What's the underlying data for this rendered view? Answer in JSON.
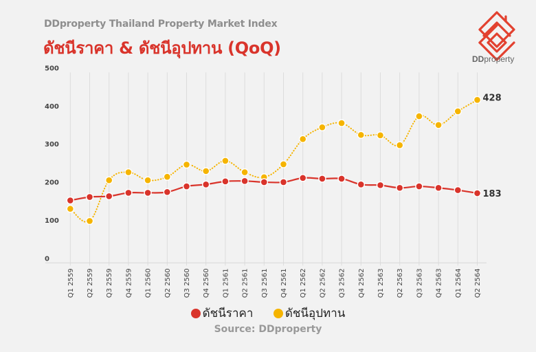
{
  "header": {
    "subtitle": "DDproperty Thailand Property Market Index",
    "title": "ดัชนีราคา & ดัชนีอุปทาน (QoQ)"
  },
  "logo": {
    "text_bold": "DD",
    "text_rest": "property"
  },
  "legend": [
    {
      "label": "ดัชนีราคา",
      "color": "#d9342b"
    },
    {
      "label": "ดัชนีอุปทาน",
      "color": "#f5b400"
    }
  ],
  "source": "Source: DDproperty",
  "end_labels": {
    "price": "183",
    "supply": "428"
  },
  "colors": {
    "price": "#d9342b",
    "supply": "#f5b400",
    "background": "#f2f2f2",
    "grid": "#dcdcdc"
  },
  "chart_data": {
    "type": "line",
    "title": "ดัชนีราคา & ดัชนีอุปทาน (QoQ)",
    "subtitle": "DDproperty Thailand Property Market Index",
    "xlabel": "",
    "ylabel": "",
    "ylim": [
      0,
      500
    ],
    "yticks": [
      0,
      100,
      200,
      300,
      400,
      500
    ],
    "grid": {
      "vertical": true,
      "horizontal": false
    },
    "legend_position": "bottom",
    "categories": [
      "Q1 2559",
      "Q2 2559",
      "Q3 2559",
      "Q4 2559",
      "Q1 2560",
      "Q2 2560",
      "Q3 2560",
      "Q4 2560",
      "Q1 2561",
      "Q2 2561",
      "Q3 2561",
      "Q4 2561",
      "Q1 2562",
      "Q2 2562",
      "Q3 2562",
      "Q4 2562",
      "Q1 2563",
      "Q2 2563",
      "Q3 2563",
      "Q4 2563",
      "Q1 2564",
      "Q2 2564"
    ],
    "series": [
      {
        "name": "ดัชนีราคา",
        "color": "#d9342b",
        "style": "solid",
        "values": [
          164,
          173,
          175,
          184,
          184,
          186,
          201,
          206,
          214,
          215,
          212,
          212,
          223,
          221,
          221,
          206,
          204,
          197,
          201,
          197,
          191,
          183
        ]
      },
      {
        "name": "ดัชนีอุปทาน",
        "color": "#f5b400",
        "style": "dotted",
        "values": [
          142,
          110,
          217,
          238,
          217,
          226,
          258,
          241,
          268,
          238,
          225,
          259,
          325,
          356,
          367,
          336,
          335,
          309,
          385,
          362,
          398,
          428
        ]
      }
    ],
    "annotations": [
      {
        "series": "ดัชนีราคา",
        "x": "Q2 2564",
        "text": "183"
      },
      {
        "series": "ดัชนีอุปทาน",
        "x": "Q2 2564",
        "text": "428"
      }
    ],
    "source": "Source: DDproperty"
  }
}
